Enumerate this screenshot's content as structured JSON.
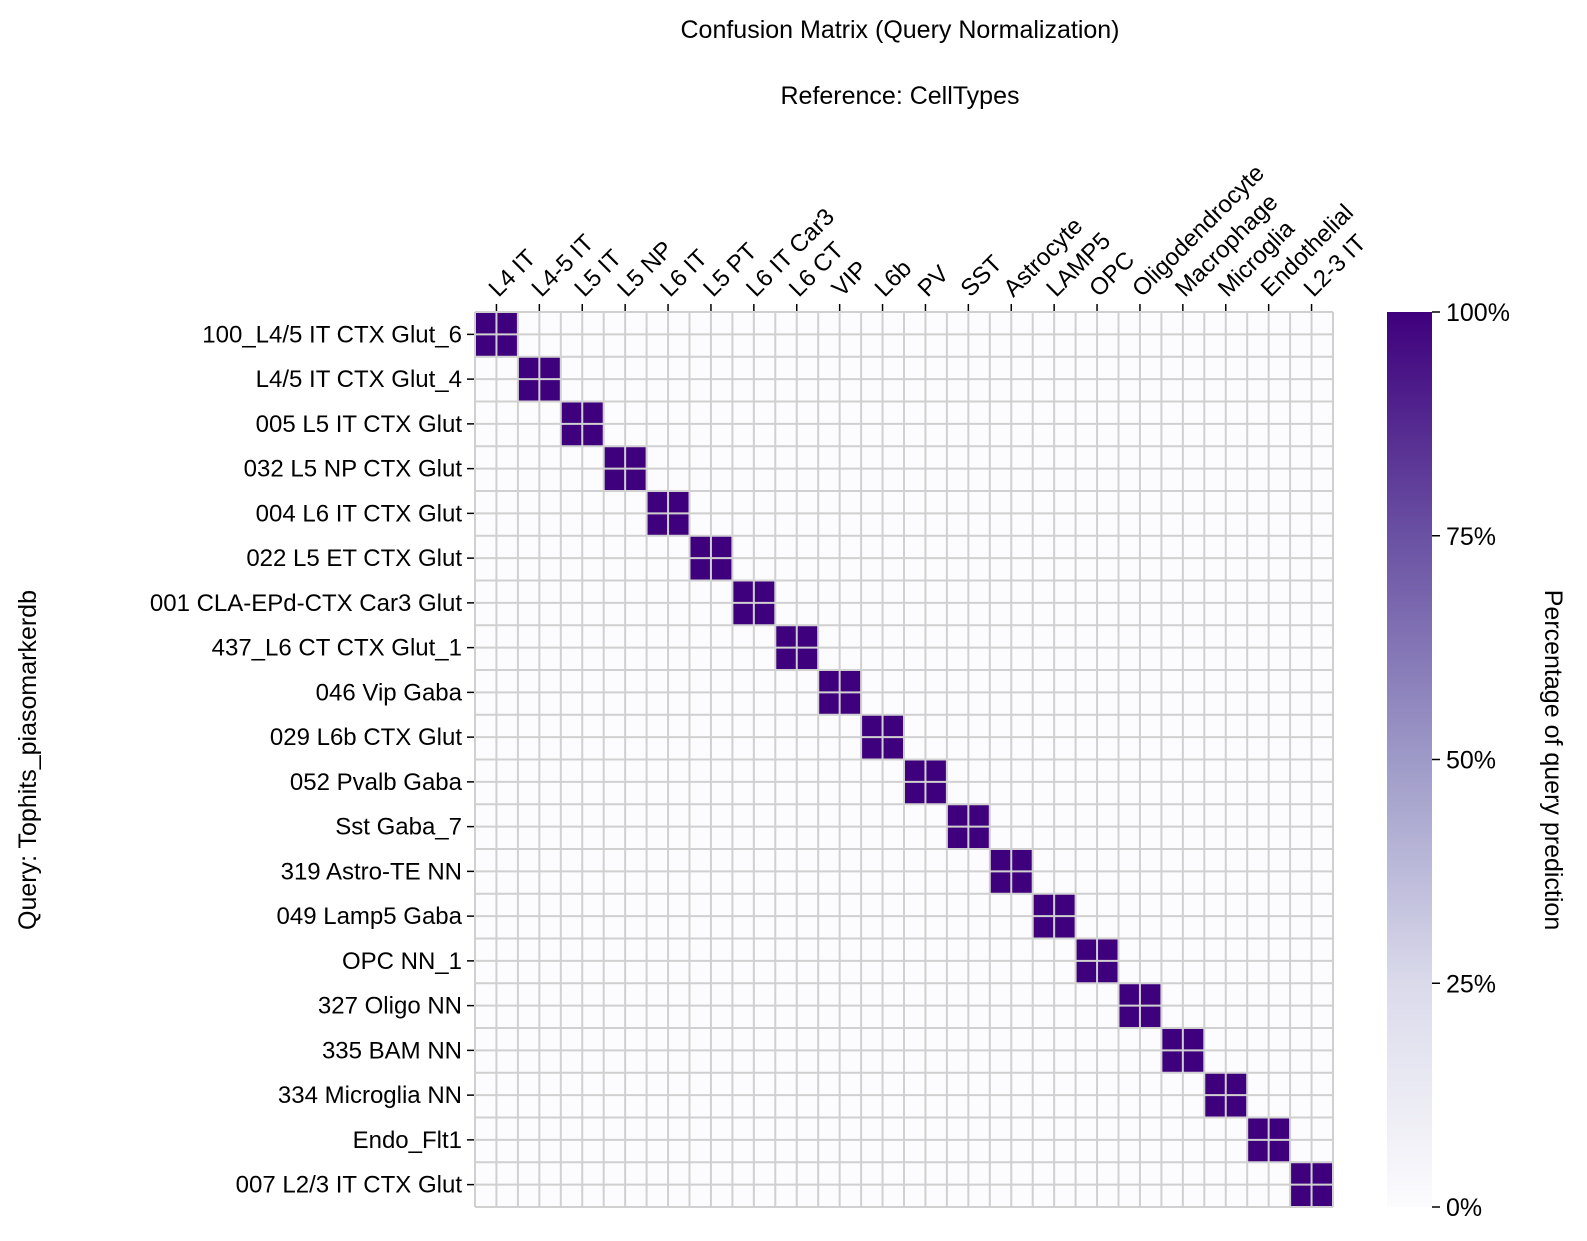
{
  "chart_data": {
    "type": "heatmap",
    "title": "Confusion Matrix (Query Normalization)",
    "subtitle": "Reference: CellTypes",
    "xlabel": "",
    "ylabel": "Query: Tophits_piasomarkerdb",
    "x_categories": [
      "L4 IT",
      "L4-5 IT",
      "L5 IT",
      "L5 NP",
      "L6 IT",
      "L5 PT",
      "L6 IT Car3",
      "L6 CT",
      "VIP",
      "L6b",
      "PV",
      "SST",
      "Astrocyte",
      "LAMP5",
      "OPC",
      "Oligodendrocyte",
      "Macrophage",
      "Microglia",
      "Endothelial",
      "L2-3 IT"
    ],
    "y_categories": [
      "100_L4/5 IT CTX Glut_6",
      "L4/5 IT CTX Glut_4",
      "005 L5 IT CTX Glut",
      "032 L5 NP CTX Glut",
      "004 L6 IT CTX Glut",
      "022 L5 ET CTX Glut",
      "001 CLA-EPd-CTX Car3 Glut",
      "437_L6 CT CTX Glut_1",
      "046 Vip Gaba",
      "029 L6b CTX Glut",
      "052 Pvalb Gaba",
      "Sst Gaba_7",
      "319 Astro-TE NN",
      "049 Lamp5 Gaba",
      "OPC NN_1",
      "327 Oligo NN",
      "335 BAM NN",
      "334 Microglia NN",
      "Endo_Flt1",
      "007 L2/3 IT CTX Glut"
    ],
    "values_rule": "diagonal",
    "diagonal_value": 100,
    "off_diagonal_value": 0,
    "colorbar": {
      "label": "Percentage of query prediction",
      "range": [
        0,
        100
      ],
      "ticks": [
        "0%",
        "25%",
        "50%",
        "75%",
        "100%"
      ],
      "colormap": "Purples",
      "color_low": "#fcfbfd",
      "color_high": "#3f007d"
    },
    "grid_color": "#d0d0d0",
    "x_tick_position": "top"
  }
}
